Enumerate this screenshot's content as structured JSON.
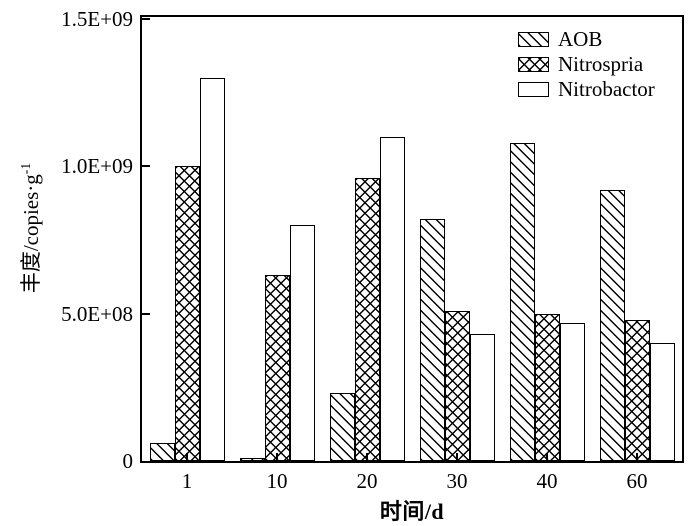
{
  "chart_data": {
    "type": "bar",
    "title": "",
    "categories": [
      "1",
      "10",
      "20",
      "30",
      "40",
      "60"
    ],
    "series": [
      {
        "name": "AOB",
        "hatch": "diagonal",
        "values": [
          60000000,
          10000000,
          230000000,
          820000000,
          1080000000,
          920000000
        ]
      },
      {
        "name": "Nitrospria",
        "hatch": "crosshatch",
        "values": [
          1000000000,
          630000000,
          960000000,
          510000000,
          500000000,
          480000000
        ]
      },
      {
        "name": "Nitrobactor",
        "hatch": "none",
        "values": [
          1300000000,
          800000000,
          1100000000,
          430000000,
          470000000,
          400000000
        ]
      }
    ],
    "xlabel": "时间/d",
    "ylabel": "丰度/copies·g⁻¹",
    "ylabel_parts": {
      "base": "丰度/copies·g",
      "sup": "-1"
    },
    "ylim": [
      0,
      1500000000
    ],
    "yticks": [
      {
        "value": 0,
        "label": "0"
      },
      {
        "value": 500000000,
        "label": "5.0E+08"
      },
      {
        "value": 1000000000,
        "label": "1.0E+09"
      },
      {
        "value": 1500000000,
        "label": "1.5E+09"
      }
    ],
    "grid": false,
    "legend_position": "top-right-inside",
    "colors": {
      "foreground": "#000000",
      "background": "#ffffff"
    }
  }
}
